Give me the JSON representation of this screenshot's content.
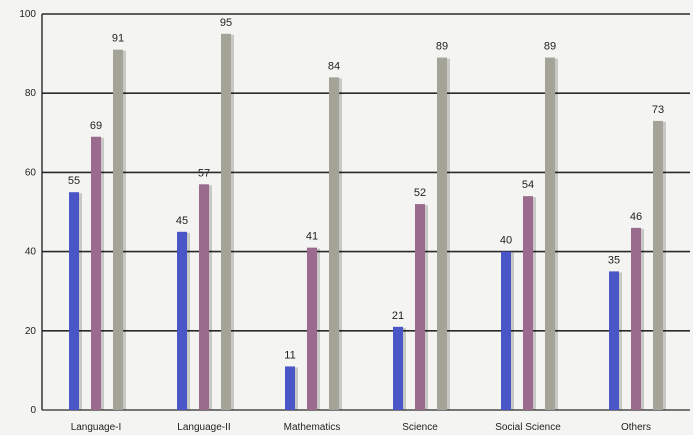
{
  "chart_data": {
    "type": "bar",
    "categories": [
      "Language-I",
      "Language-II",
      "Mathematics",
      "Science",
      "Social Science",
      "Others"
    ],
    "series": [
      {
        "values": [
          55,
          45,
          11,
          21,
          40,
          35
        ],
        "color": "#4a55c8"
      },
      {
        "values": [
          69,
          57,
          41,
          52,
          54,
          46
        ],
        "color": "#9a6b8c"
      },
      {
        "values": [
          91,
          95,
          84,
          89,
          89,
          73
        ],
        "color": "#a3a397"
      }
    ],
    "ylim": [
      0,
      100
    ],
    "yticks": [
      "0",
      "20",
      "40",
      "60",
      "80",
      "100"
    ],
    "grid": true,
    "data_labels": true
  }
}
